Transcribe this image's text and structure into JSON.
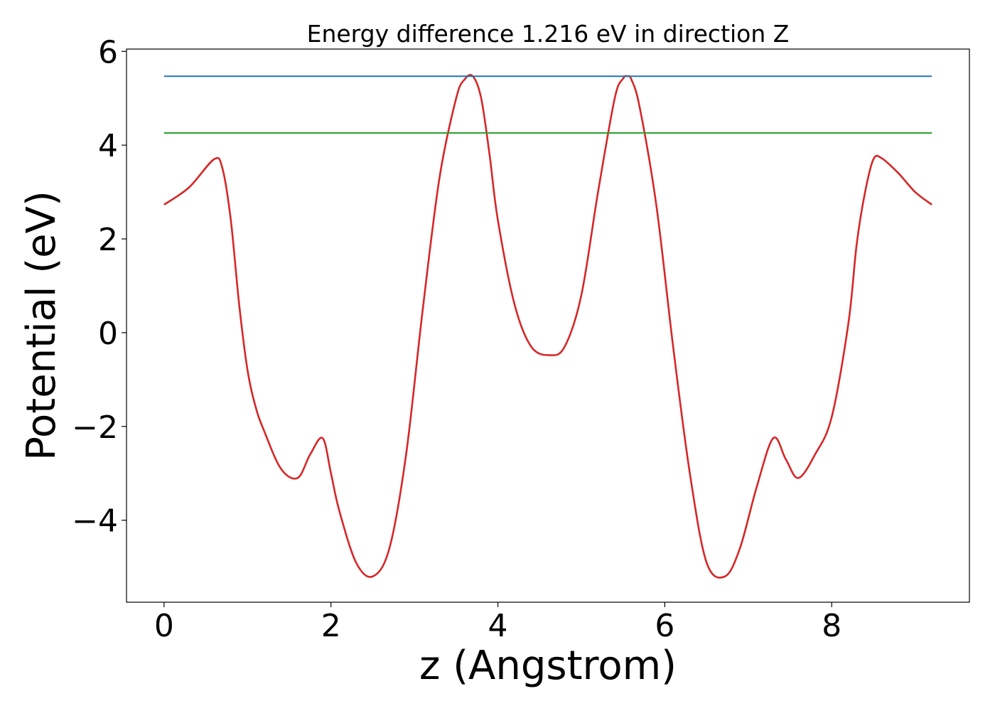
{
  "chart_data": {
    "type": "line",
    "title": "Energy difference 1.216 eV in direction Z",
    "xlabel": "z (Angstrom)",
    "ylabel": "Potential (eV)",
    "xlim": [
      -0.45,
      9.65
    ],
    "ylim": [
      -5.75,
      6.05
    ],
    "xticks": [
      0,
      2,
      4,
      6,
      8
    ],
    "xtick_labels": [
      "0",
      "2",
      "4",
      "6",
      "8"
    ],
    "yticks": [
      -4,
      -2,
      0,
      2,
      4,
      6
    ],
    "ytick_labels": [
      "−4",
      "−2",
      "0",
      "2",
      "4",
      "6"
    ],
    "grid": false,
    "series": [
      {
        "color": "#d62728",
        "x": [
          0,
          0.3,
          0.6,
          0.7,
          0.8,
          0.9,
          1.0,
          1.1,
          1.2,
          1.4,
          1.6,
          1.75,
          1.9,
          2.0,
          2.1,
          2.3,
          2.5,
          2.7,
          2.9,
          3.1,
          3.3,
          3.5,
          3.6,
          3.7,
          3.8,
          3.9,
          4.0,
          4.2,
          4.4,
          4.62,
          4.8,
          5.0,
          5.2,
          5.4,
          5.5,
          5.55,
          5.6,
          5.7,
          5.9,
          6.1,
          6.3,
          6.5,
          6.72,
          6.9,
          7.1,
          7.3,
          7.45,
          7.6,
          7.8,
          8.0,
          8.2,
          8.3,
          8.4,
          8.5,
          8.6,
          8.8,
          9.0,
          9.2
        ],
        "y": [
          2.73,
          3.1,
          3.7,
          3.5,
          2.4,
          0.6,
          -0.8,
          -1.6,
          -2.1,
          -2.9,
          -3.1,
          -2.6,
          -2.25,
          -3.0,
          -3.8,
          -4.9,
          -5.2,
          -4.6,
          -2.6,
          0.5,
          3.3,
          5.0,
          5.4,
          5.47,
          5.0,
          3.8,
          2.4,
          0.6,
          -0.3,
          -0.48,
          -0.3,
          0.8,
          3.0,
          5.0,
          5.42,
          5.47,
          5.4,
          4.8,
          2.7,
          -0.3,
          -3.0,
          -4.9,
          -5.2,
          -4.6,
          -3.3,
          -2.25,
          -2.7,
          -3.1,
          -2.6,
          -1.8,
          0.2,
          1.9,
          3.0,
          3.7,
          3.72,
          3.4,
          3.0,
          2.73
        ]
      },
      {
        "color": "#1f77b4",
        "x": [
          0,
          9.2
        ],
        "y": [
          5.47,
          5.47
        ]
      },
      {
        "color": "#2ca02c",
        "x": [
          0,
          9.2
        ],
        "y": [
          4.26,
          4.26
        ]
      }
    ]
  }
}
